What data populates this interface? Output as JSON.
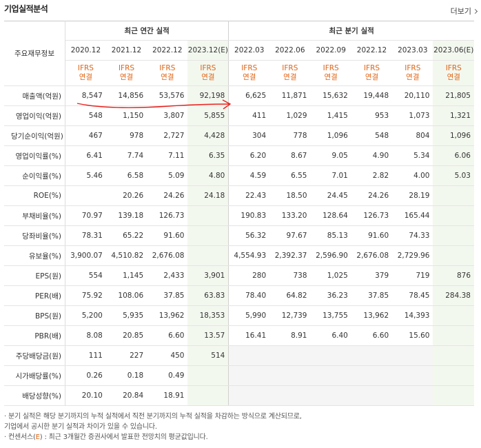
{
  "header": {
    "title": "기업실적분석",
    "more_label": "더보기"
  },
  "table": {
    "row_header_label": "주요재무정보",
    "group_annual": "최근 연간 실적",
    "group_quarter": "최근 분기 실적",
    "periods": [
      "2020.12",
      "2021.12",
      "2022.12",
      "2023.12(E)",
      "2022.03",
      "2022.06",
      "2022.09",
      "2022.12",
      "2023.03",
      "2023.06(E)"
    ],
    "basis_top": "IFRS",
    "basis_bottom": "연결",
    "rows": [
      {
        "label": "매출액(억원)",
        "values": [
          "8,547",
          "14,856",
          "53,576",
          "92,198",
          "6,625",
          "11,871",
          "15,632",
          "19,448",
          "20,110",
          "21,805"
        ]
      },
      {
        "label": "영업이익(억원)",
        "values": [
          "548",
          "1,150",
          "3,807",
          "5,855",
          "411",
          "1,029",
          "1,415",
          "953",
          "1,073",
          "1,321"
        ]
      },
      {
        "label": "당기순이익(억원)",
        "values": [
          "467",
          "978",
          "2,727",
          "4,428",
          "304",
          "778",
          "1,096",
          "548",
          "804",
          "1,096"
        ]
      },
      {
        "label": "영업이익률(%)",
        "values": [
          "6.41",
          "7.74",
          "7.11",
          "6.35",
          "6.20",
          "8.67",
          "9.05",
          "4.90",
          "5.34",
          "6.06"
        ]
      },
      {
        "label": "순이익률(%)",
        "values": [
          "5.46",
          "6.58",
          "5.09",
          "4.80",
          "4.59",
          "6.55",
          "7.01",
          "2.82",
          "4.00",
          "5.03"
        ]
      },
      {
        "label": "ROE(%)",
        "values": [
          "",
          "20.26",
          "24.26",
          "24.18",
          "22.43",
          "18.50",
          "24.45",
          "24.26",
          "28.19",
          ""
        ]
      },
      {
        "label": "부채비율(%)",
        "values": [
          "70.97",
          "139.18",
          "126.73",
          "",
          "190.83",
          "133.20",
          "128.64",
          "126.73",
          "165.44",
          ""
        ]
      },
      {
        "label": "당좌비율(%)",
        "values": [
          "78.31",
          "65.22",
          "91.60",
          "",
          "56.32",
          "97.67",
          "85.13",
          "91.60",
          "74.33",
          ""
        ]
      },
      {
        "label": "유보율(%)",
        "values": [
          "3,900.07",
          "4,510.82",
          "2,676.08",
          "",
          "4,554.93",
          "2,392.37",
          "2,596.90",
          "2,676.08",
          "2,729.96",
          ""
        ]
      },
      {
        "label": "EPS(원)",
        "values": [
          "554",
          "1,145",
          "2,433",
          "3,901",
          "280",
          "738",
          "1,025",
          "379",
          "719",
          "876"
        ]
      },
      {
        "label": "PER(배)",
        "values": [
          "75.92",
          "108.06",
          "37.85",
          "63.83",
          "78.40",
          "64.82",
          "36.23",
          "37.85",
          "78.45",
          "284.38"
        ]
      },
      {
        "label": "BPS(원)",
        "values": [
          "5,200",
          "5,935",
          "13,962",
          "18,353",
          "5,990",
          "12,739",
          "13,755",
          "13,962",
          "14,393",
          ""
        ]
      },
      {
        "label": "PBR(배)",
        "values": [
          "8.08",
          "20.85",
          "6.60",
          "13.57",
          "16.41",
          "8.91",
          "6.40",
          "6.60",
          "15.60",
          ""
        ]
      },
      {
        "label": "주당배당금(원)",
        "values": [
          "111",
          "227",
          "450",
          "514",
          "",
          "",
          "",
          "",
          "",
          ""
        ]
      },
      {
        "label": "시가배당률(%)",
        "values": [
          "0.26",
          "0.18",
          "0.49",
          "",
          "",
          "",
          "",
          "",
          "",
          ""
        ]
      },
      {
        "label": "배당성향(%)",
        "values": [
          "20.10",
          "20.84",
          "18.91",
          "",
          "",
          "",
          "",
          "",
          "",
          ""
        ]
      }
    ]
  },
  "notes": {
    "line1": "· 분기 실적은 해당 분기까지의 누적 실적에서 직전 분기까지의 누적 실적을 차감하는 방식으로 계산되므로,",
    "line2": "  기업에서 공시한 분기 실적과 차이가 있을 수 있습니다.",
    "line3_prefix": "· 컨센서스(",
    "line3_e": "E",
    "line3_suffix": ") : 최근 3개월간 증권사에서 발표한 전망치의 평균값입니다."
  },
  "colors": {
    "accent": "#e06414",
    "annotation": "#e8201c",
    "estimate_bg": "#f3f8ef"
  }
}
